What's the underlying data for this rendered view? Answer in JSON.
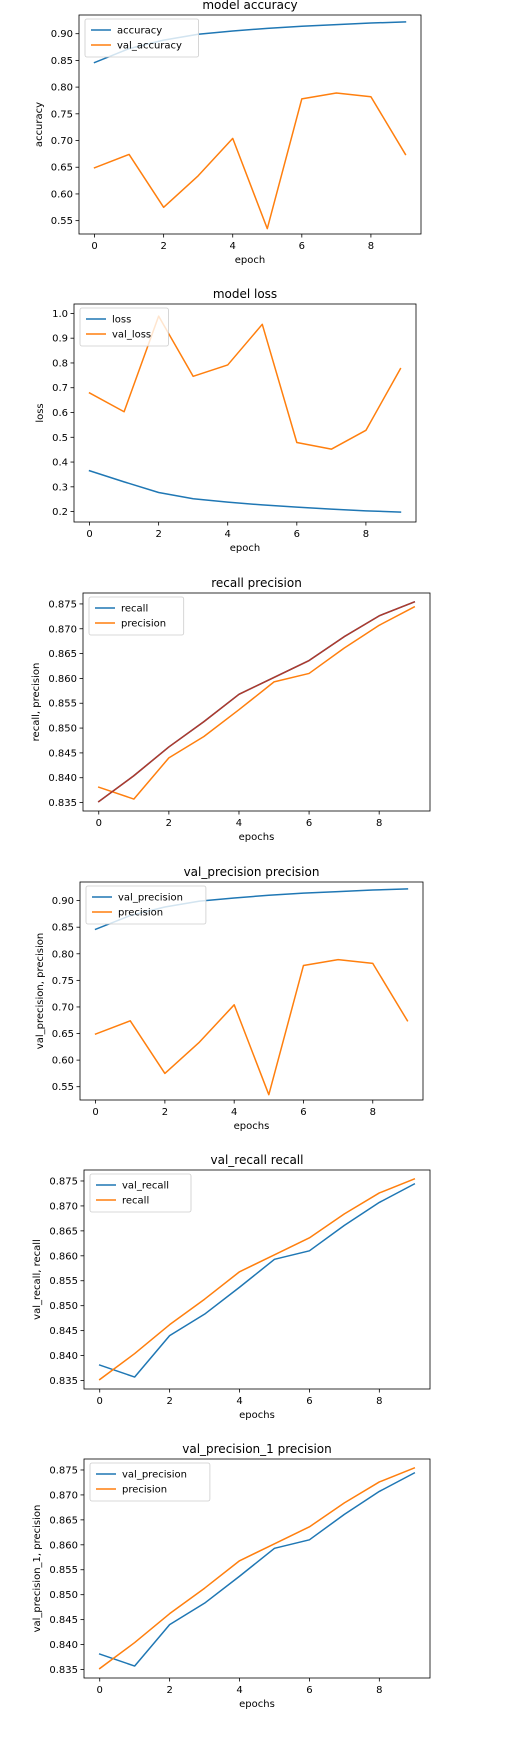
{
  "chart_data": [
    {
      "type": "line",
      "title": "model accuracy",
      "xlabel": "epoch",
      "ylabel": "accuracy",
      "xlim": [
        -0.45,
        9.45
      ],
      "ylim": [
        0.525,
        0.935
      ],
      "xticks": [
        0,
        2,
        4,
        6,
        8
      ],
      "yticks": [
        0.55,
        0.6,
        0.65,
        0.7,
        0.75,
        0.8,
        0.85,
        0.9
      ],
      "tick_decimals": 2,
      "legend_position": "upper-left",
      "series": [
        {
          "name": "accuracy",
          "color": "#1f77b4",
          "x": [
            0,
            1,
            2,
            3,
            4,
            5,
            6,
            7,
            8,
            9
          ],
          "values": [
            0.846,
            0.872,
            0.888,
            0.899,
            0.905,
            0.91,
            0.914,
            0.917,
            0.92,
            0.922
          ]
        },
        {
          "name": "val_accuracy",
          "color": "#ff7f0e",
          "x": [
            0,
            1,
            2,
            3,
            4,
            5,
            6,
            7,
            8,
            9
          ],
          "values": [
            0.649,
            0.674,
            0.575,
            0.634,
            0.704,
            0.535,
            0.778,
            0.789,
            0.782,
            0.674
          ]
        }
      ]
    },
    {
      "type": "line",
      "title": "model loss",
      "xlabel": "epoch",
      "ylabel": "loss",
      "xlim": [
        -0.45,
        9.45
      ],
      "ylim": [
        0.158,
        1.038
      ],
      "xticks": [
        0,
        2,
        4,
        6,
        8
      ],
      "yticks": [
        0.2,
        0.3,
        0.4,
        0.5,
        0.6,
        0.7,
        0.8,
        0.9,
        1.0
      ],
      "tick_decimals": 1,
      "legend_position": "upper-left",
      "series": [
        {
          "name": "loss",
          "color": "#1f77b4",
          "x": [
            0,
            1,
            2,
            3,
            4,
            5,
            6,
            7,
            8,
            9
          ],
          "values": [
            0.365,
            0.32,
            0.277,
            0.252,
            0.238,
            0.227,
            0.218,
            0.21,
            0.203,
            0.198
          ]
        },
        {
          "name": "val_loss",
          "color": "#ff7f0e",
          "x": [
            0,
            1,
            2,
            3,
            4,
            5,
            6,
            7,
            8,
            9
          ],
          "values": [
            0.679,
            0.603,
            0.989,
            0.746,
            0.792,
            0.956,
            0.479,
            0.452,
            0.528,
            0.777
          ]
        }
      ]
    },
    {
      "type": "line",
      "title": "recall precision",
      "xlabel": "epochs",
      "ylabel": "recall, precision",
      "xlim": [
        -0.45,
        9.45
      ],
      "ylim": [
        0.8333,
        0.8772
      ],
      "xticks": [
        0,
        2,
        4,
        6,
        8
      ],
      "yticks": [
        0.835,
        0.84,
        0.845,
        0.85,
        0.855,
        0.86,
        0.865,
        0.87,
        0.875
      ],
      "tick_decimals": 3,
      "legend_position": "upper-left",
      "series": [
        {
          "name": "recall",
          "color": "#1f77b4",
          "x": [
            0,
            1,
            2,
            3,
            4,
            5,
            6,
            7,
            8,
            9
          ],
          "values": [
            0.8352,
            0.8404,
            0.8462,
            0.8513,
            0.8568,
            0.8602,
            0.8636,
            0.8684,
            0.8726,
            0.8754
          ]
        },
        {
          "name": "precision",
          "color": "#ff7f0e",
          "x": [
            0,
            1,
            2,
            3,
            4,
            5,
            6,
            7,
            8,
            9
          ],
          "values": [
            0.8381,
            0.8357,
            0.844,
            0.8483,
            0.8537,
            0.8593,
            0.861,
            0.8661,
            0.8707,
            0.8744
          ]
        },
        {
          "color": "#b0392b",
          "x": [
            0,
            1,
            2,
            3,
            4,
            5,
            6,
            7,
            8,
            9
          ],
          "values": [
            0.8352,
            0.8404,
            0.8462,
            0.8513,
            0.8568,
            0.8602,
            0.8636,
            0.8684,
            0.8726,
            0.8754
          ]
        }
      ]
    },
    {
      "type": "line",
      "title": "val_precision precision",
      "xlabel": "epochs",
      "ylabel": "val_precision, precision",
      "xlim": [
        -0.45,
        9.45
      ],
      "ylim": [
        0.525,
        0.935
      ],
      "xticks": [
        0,
        2,
        4,
        6,
        8
      ],
      "yticks": [
        0.55,
        0.6,
        0.65,
        0.7,
        0.75,
        0.8,
        0.85,
        0.9
      ],
      "tick_decimals": 2,
      "legend_position": "upper-left",
      "series": [
        {
          "name": "val_precision",
          "color": "#1f77b4",
          "x": [
            0,
            1,
            2,
            3,
            4,
            5,
            6,
            7,
            8,
            9
          ],
          "values": [
            0.846,
            0.872,
            0.888,
            0.899,
            0.905,
            0.91,
            0.914,
            0.917,
            0.92,
            0.922
          ]
        },
        {
          "name": "precision",
          "color": "#ff7f0e",
          "x": [
            0,
            1,
            2,
            3,
            4,
            5,
            6,
            7,
            8,
            9
          ],
          "values": [
            0.649,
            0.674,
            0.575,
            0.634,
            0.704,
            0.535,
            0.778,
            0.789,
            0.782,
            0.674
          ]
        }
      ]
    },
    {
      "type": "line",
      "title": "val_recall recall",
      "xlabel": "epochs",
      "ylabel": "val_recall, recall",
      "xlim": [
        -0.45,
        9.45
      ],
      "ylim": [
        0.8333,
        0.8772
      ],
      "xticks": [
        0,
        2,
        4,
        6,
        8
      ],
      "yticks": [
        0.835,
        0.84,
        0.845,
        0.85,
        0.855,
        0.86,
        0.865,
        0.87,
        0.875
      ],
      "tick_decimals": 3,
      "legend_position": "upper-left",
      "series": [
        {
          "name": "val_recall",
          "color": "#1f77b4",
          "x": [
            0,
            1,
            2,
            3,
            4,
            5,
            6,
            7,
            8,
            9
          ],
          "values": [
            0.8381,
            0.8357,
            0.844,
            0.8483,
            0.8537,
            0.8593,
            0.861,
            0.8661,
            0.8707,
            0.8744
          ]
        },
        {
          "name": "recall",
          "color": "#ff7f0e",
          "x": [
            0,
            1,
            2,
            3,
            4,
            5,
            6,
            7,
            8,
            9
          ],
          "values": [
            0.8352,
            0.8404,
            0.8462,
            0.8513,
            0.8568,
            0.8602,
            0.8636,
            0.8684,
            0.8726,
            0.8754
          ]
        }
      ]
    },
    {
      "type": "line",
      "title": "val_precision_1 precision",
      "xlabel": "epochs",
      "ylabel": "val_precision_1, precision",
      "xlim": [
        -0.45,
        9.45
      ],
      "ylim": [
        0.8333,
        0.8772
      ],
      "xticks": [
        0,
        2,
        4,
        6,
        8
      ],
      "yticks": [
        0.835,
        0.84,
        0.845,
        0.85,
        0.855,
        0.86,
        0.865,
        0.87,
        0.875
      ],
      "tick_decimals": 3,
      "legend_position": "upper-left",
      "series": [
        {
          "name": "val_precision",
          "color": "#1f77b4",
          "x": [
            0,
            1,
            2,
            3,
            4,
            5,
            6,
            7,
            8,
            9
          ],
          "values": [
            0.8381,
            0.8357,
            0.844,
            0.8483,
            0.8537,
            0.8593,
            0.861,
            0.8661,
            0.8707,
            0.8744
          ]
        },
        {
          "name": "precision",
          "color": "#ff7f0e",
          "x": [
            0,
            1,
            2,
            3,
            4,
            5,
            6,
            7,
            8,
            9
          ],
          "values": [
            0.8352,
            0.8404,
            0.8462,
            0.8513,
            0.8568,
            0.8602,
            0.8636,
            0.8684,
            0.8726,
            0.8754
          ]
        }
      ]
    }
  ]
}
